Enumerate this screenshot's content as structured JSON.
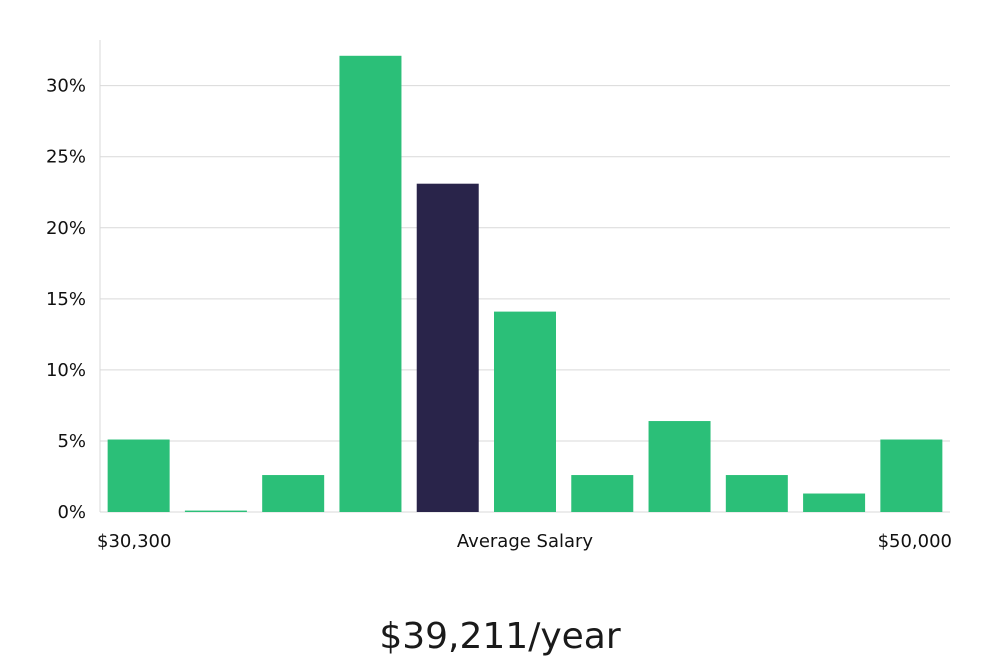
{
  "chart_data": {
    "type": "bar",
    "title": "",
    "xlabel": "Average Salary",
    "ylabel": "",
    "x_range_labels": {
      "start": "$30,300",
      "end": "$50,000"
    },
    "ylim": [
      0,
      33
    ],
    "yticks": [
      0,
      5,
      10,
      15,
      20,
      25,
      30
    ],
    "ytick_labels": [
      "0%",
      "5%",
      "10%",
      "15%",
      "20%",
      "25%",
      "30%"
    ],
    "values": [
      5.1,
      0.1,
      2.6,
      32.1,
      23.1,
      14.1,
      2.6,
      6.4,
      2.6,
      1.3,
      5.1
    ],
    "highlight_index": 4,
    "grid": true,
    "legend": "none",
    "colors": {
      "bar": "#2bbf78",
      "highlight": "#29244a",
      "grid": "#d9d9d9",
      "axis": "#d9d9d9"
    }
  },
  "summary": {
    "value_text": "$39,211/year"
  }
}
